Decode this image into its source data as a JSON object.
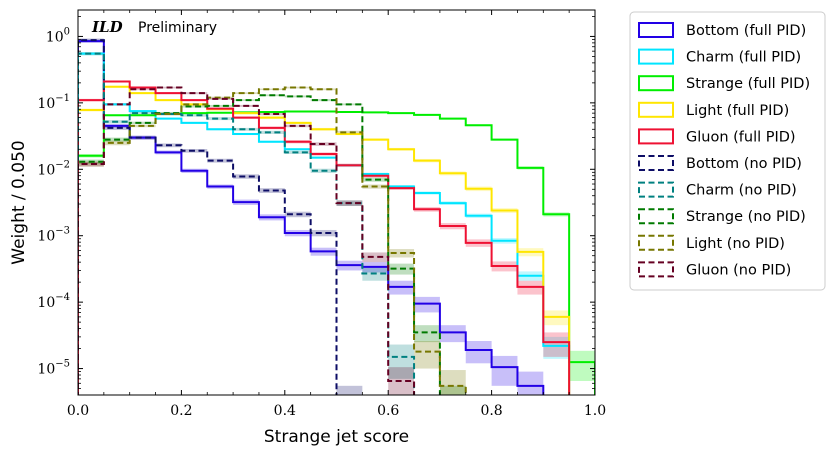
{
  "chart_data": {
    "type": "histogram",
    "title": "",
    "annotation": {
      "experiment": "ILD",
      "status": "Preliminary"
    },
    "xlabel": "Strange jet score",
    "ylabel": "Weight / 0.050",
    "xlim": [
      0.0,
      1.0
    ],
    "ylim": [
      4e-06,
      2.5
    ],
    "yscale": "log",
    "xticks": [
      {
        "value": 0.0,
        "label": "0.0"
      },
      {
        "value": 0.2,
        "label": "0.2"
      },
      {
        "value": 0.4,
        "label": "0.4"
      },
      {
        "value": 0.6,
        "label": "0.6"
      },
      {
        "value": 0.8,
        "label": "0.8"
      },
      {
        "value": 1.0,
        "label": "1.0"
      }
    ],
    "yticks": [
      {
        "value": 1.0,
        "base": "10",
        "exp": "0"
      },
      {
        "value": 0.1,
        "base": "10",
        "exp": "−1"
      },
      {
        "value": 0.01,
        "base": "10",
        "exp": "−2"
      },
      {
        "value": 0.001,
        "base": "10",
        "exp": "−3"
      },
      {
        "value": 0.0001,
        "base": "10",
        "exp": "−4"
      },
      {
        "value": 1e-05,
        "base": "10",
        "exp": "−5"
      }
    ],
    "bin_width": 0.05,
    "legend_position": "outside-right",
    "series": [
      {
        "name": "Bottom (full PID)",
        "color": "#2200e6",
        "style": "solid",
        "values": [
          0.85,
          0.045,
          0.03,
          0.018,
          0.0095,
          0.0055,
          0.0032,
          0.0019,
          0.0011,
          0.00058,
          0.00036,
          0.00034,
          0.00017,
          9.5e-05,
          3.5e-05,
          1.9e-05,
          1.05e-05,
          5.5e-06,
          0,
          0
        ],
        "error_band": [
          0.05,
          0.003,
          0.002,
          0.0012,
          0.0007,
          0.0004,
          0.0003,
          0.0002,
          0.00012,
          8e-05,
          6e-05,
          6e-05,
          4e-05,
          2.5e-05,
          1e-05,
          7e-06,
          5e-06,
          3.5e-06,
          0,
          0
        ]
      },
      {
        "name": "Charm (full PID)",
        "color": "#00e5ff",
        "style": "solid",
        "values": [
          0.55,
          0.095,
          0.075,
          0.058,
          0.05,
          0.04,
          0.034,
          0.026,
          0.02,
          0.015,
          0.0115,
          0.0085,
          0.0055,
          0.0044,
          0.0031,
          0.002,
          0.00084,
          0.00025,
          2.2e-05,
          0
        ],
        "error_band": [
          0.03,
          0.004,
          0.003,
          0.002,
          0.002,
          0.0016,
          0.0013,
          0.001,
          0.0008,
          0.0006,
          0.0005,
          0.0004,
          0.0003,
          0.00025,
          0.0002,
          0.00015,
          8e-05,
          4e-05,
          8e-06,
          0
        ]
      },
      {
        "name": "Strange (full PID)",
        "color": "#00ee00",
        "style": "solid",
        "values": [
          0.016,
          0.065,
          0.065,
          0.068,
          0.07,
          0.071,
          0.072,
          0.073,
          0.074,
          0.074,
          0.073,
          0.072,
          0.07,
          0.066,
          0.058,
          0.046,
          0.028,
          0.0105,
          0.0021,
          1.25e-05
        ],
        "error_band": [
          0.001,
          0.002,
          0.002,
          0.002,
          0.002,
          0.002,
          0.002,
          0.002,
          0.002,
          0.002,
          0.002,
          0.002,
          0.002,
          0.002,
          0.002,
          0.0015,
          0.001,
          0.0006,
          0.00015,
          6e-06
        ]
      },
      {
        "name": "Light (full PID)",
        "color": "#ffe600",
        "style": "solid",
        "values": [
          0.078,
          0.175,
          0.14,
          0.11,
          0.095,
          0.08,
          0.07,
          0.06,
          0.05,
          0.04,
          0.034,
          0.028,
          0.02,
          0.0135,
          0.0087,
          0.0051,
          0.0024,
          0.00057,
          6e-05,
          0
        ],
        "error_band": [
          0.004,
          0.006,
          0.005,
          0.004,
          0.004,
          0.003,
          0.003,
          0.003,
          0.002,
          0.002,
          0.0015,
          0.0012,
          0.001,
          0.0008,
          0.0006,
          0.0004,
          0.0002,
          8e-05,
          1.5e-05,
          0
        ]
      },
      {
        "name": "Gluon (full PID)",
        "color": "#ee1133",
        "style": "solid",
        "values": [
          0.11,
          0.21,
          0.17,
          0.14,
          0.11,
          0.082,
          0.06,
          0.042,
          0.026,
          0.017,
          0.0115,
          0.008,
          0.0052,
          0.0025,
          0.0014,
          0.00078,
          0.00035,
          0.00017,
          2.5e-05,
          0
        ],
        "error_band": [
          0.005,
          0.007,
          0.006,
          0.005,
          0.004,
          0.003,
          0.0025,
          0.002,
          0.0015,
          0.001,
          0.0007,
          0.0005,
          0.0003,
          0.0002,
          0.00015,
          0.0001,
          6e-05,
          4e-05,
          1e-05,
          0
        ]
      },
      {
        "name": "Bottom (no PID)",
        "color": "#0d0d66",
        "style": "dashed",
        "values": [
          0.88,
          0.042,
          0.03,
          0.023,
          0.019,
          0.0135,
          0.0078,
          0.0048,
          0.0021,
          0.0011,
          3.5e-06,
          0,
          0,
          0,
          0,
          0,
          0,
          0,
          0,
          0
        ],
        "error_band": [
          0.05,
          0.003,
          0.002,
          0.0015,
          0.0012,
          0.0009,
          0.0006,
          0.0004,
          0.0002,
          0.00012,
          2e-06,
          0,
          0,
          0,
          0,
          0,
          0,
          0,
          0,
          0
        ]
      },
      {
        "name": "Charm (no PID)",
        "color": "#008080",
        "style": "dashed",
        "values": [
          0.55,
          0.052,
          0.07,
          0.068,
          0.065,
          0.058,
          0.04,
          0.036,
          0.018,
          0.0095,
          0.0031,
          0.00027,
          1.5e-05,
          0,
          0,
          0,
          0,
          0,
          0,
          0
        ],
        "error_band": [
          0.03,
          0.003,
          0.003,
          0.003,
          0.003,
          0.003,
          0.002,
          0.002,
          0.001,
          0.0007,
          0.0003,
          6e-05,
          8e-06,
          0,
          0,
          0,
          0,
          0,
          0,
          0
        ]
      },
      {
        "name": "Strange (no PID)",
        "color": "#007a00",
        "style": "dashed",
        "values": [
          0.013,
          0.028,
          0.05,
          0.07,
          0.088,
          0.09,
          0.11,
          0.13,
          0.125,
          0.11,
          0.095,
          0.007,
          0.00032,
          3.5e-05,
          3.5e-06,
          0,
          0,
          0,
          0,
          0
        ],
        "error_band": [
          0.001,
          0.002,
          0.002,
          0.003,
          0.003,
          0.003,
          0.003,
          0.004,
          0.004,
          0.004,
          0.003,
          0.0005,
          6e-05,
          1e-05,
          2e-06,
          0,
          0,
          0,
          0,
          0
        ]
      },
      {
        "name": "Light (no PID)",
        "color": "#777700",
        "style": "dashed",
        "values": [
          0.012,
          0.025,
          0.045,
          0.068,
          0.095,
          0.12,
          0.14,
          0.16,
          0.17,
          0.16,
          0.036,
          0.0055,
          0.00055,
          1.8e-05,
          5.5e-06,
          0,
          0,
          0,
          0,
          0
        ],
        "error_band": [
          0.001,
          0.002,
          0.002,
          0.003,
          0.003,
          0.004,
          0.004,
          0.004,
          0.005,
          0.005,
          0.002,
          0.0004,
          8e-05,
          8e-06,
          4e-06,
          0,
          0,
          0,
          0,
          0
        ]
      },
      {
        "name": "Gluon (no PID)",
        "color": "#660022",
        "style": "dashed",
        "values": [
          0.012,
          0.095,
          0.16,
          0.17,
          0.14,
          0.115,
          0.09,
          0.068,
          0.045,
          0.024,
          0.0031,
          0.00048,
          6.5e-06,
          0,
          0,
          0,
          0,
          0,
          0,
          0
        ],
        "error_band": [
          0.001,
          0.004,
          0.005,
          0.005,
          0.005,
          0.004,
          0.003,
          0.003,
          0.002,
          0.0015,
          0.0003,
          8e-05,
          4e-06,
          0,
          0,
          0,
          0,
          0,
          0,
          0
        ]
      }
    ]
  }
}
